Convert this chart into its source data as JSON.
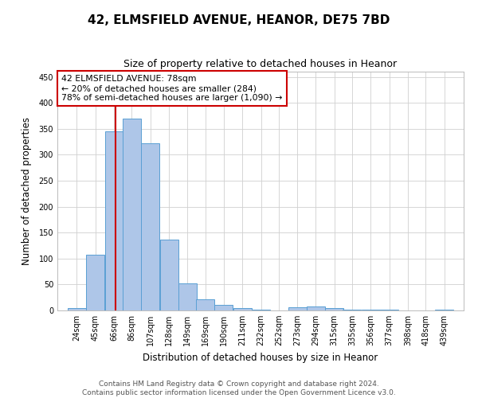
{
  "title_line1": "42, ELMSFIELD AVENUE, HEANOR, DE75 7BD",
  "title_line2": "Size of property relative to detached houses in Heanor",
  "xlabel": "Distribution of detached houses by size in Heanor",
  "ylabel": "Number of detached properties",
  "bins": [
    "24sqm",
    "45sqm",
    "66sqm",
    "86sqm",
    "107sqm",
    "128sqm",
    "149sqm",
    "169sqm",
    "190sqm",
    "211sqm",
    "232sqm",
    "252sqm",
    "273sqm",
    "294sqm",
    "315sqm",
    "335sqm",
    "356sqm",
    "377sqm",
    "398sqm",
    "418sqm",
    "439sqm"
  ],
  "bin_edges": [
    24,
    45,
    66,
    86,
    107,
    128,
    149,
    169,
    190,
    211,
    232,
    252,
    273,
    294,
    315,
    335,
    356,
    377,
    398,
    418,
    439
  ],
  "values": [
    5,
    108,
    345,
    370,
    322,
    137,
    52,
    22,
    10,
    5,
    1,
    0,
    6,
    7,
    4,
    2,
    1,
    1,
    0,
    0,
    2
  ],
  "bar_color": "#aec6e8",
  "bar_edge_color": "#5a9fd4",
  "property_size": 78,
  "annotation_text_line1": "42 ELMSFIELD AVENUE: 78sqm",
  "annotation_text_line2": "← 20% of detached houses are smaller (284)",
  "annotation_text_line3": "78% of semi-detached houses are larger (1,090) →",
  "annotation_box_color": "#ffffff",
  "annotation_box_edge_color": "#cc0000",
  "redline_color": "#cc0000",
  "ylim": [
    0,
    460
  ],
  "yticks": [
    0,
    50,
    100,
    150,
    200,
    250,
    300,
    350,
    400,
    450
  ],
  "footer_line1": "Contains HM Land Registry data © Crown copyright and database right 2024.",
  "footer_line2": "Contains public sector information licensed under the Open Government Licence v3.0.",
  "bg_color": "#ffffff",
  "grid_color": "#d0d0d0"
}
